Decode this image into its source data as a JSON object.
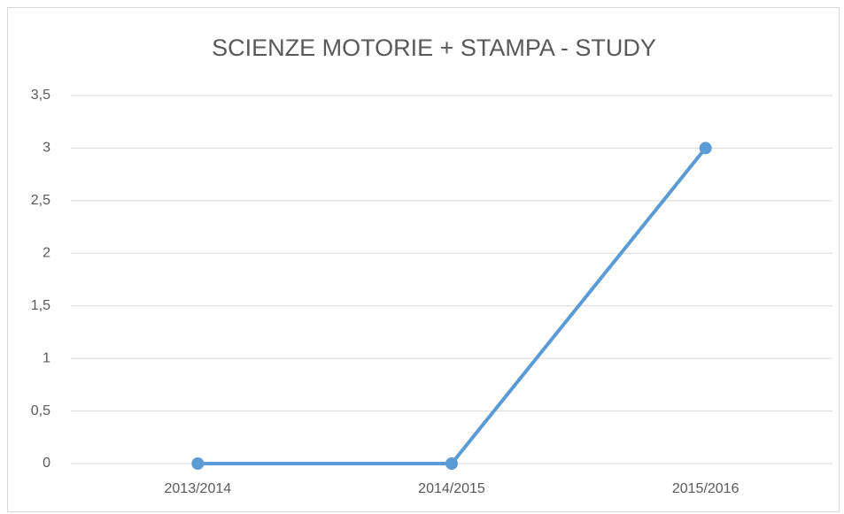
{
  "chart_data": {
    "type": "line",
    "title": "SCIENZE MOTORIE + STAMPA  - STUDY",
    "categories": [
      "2013/2014",
      "2014/2015",
      "2015/2016"
    ],
    "series": [
      {
        "name": "STUDY",
        "color": "#5b9bd5",
        "values": [
          0,
          0,
          3
        ]
      }
    ],
    "ylim": [
      0,
      3.5
    ],
    "yticks": [
      0,
      {
        "value": 0.5,
        "label": "0,5"
      },
      1,
      {
        "value": 1.5,
        "label": "1,5"
      },
      2,
      {
        "value": 2.5,
        "label": "2,5"
      },
      3,
      {
        "value": 3.5,
        "label": "3,5"
      }
    ],
    "grid": true,
    "legend": false
  }
}
